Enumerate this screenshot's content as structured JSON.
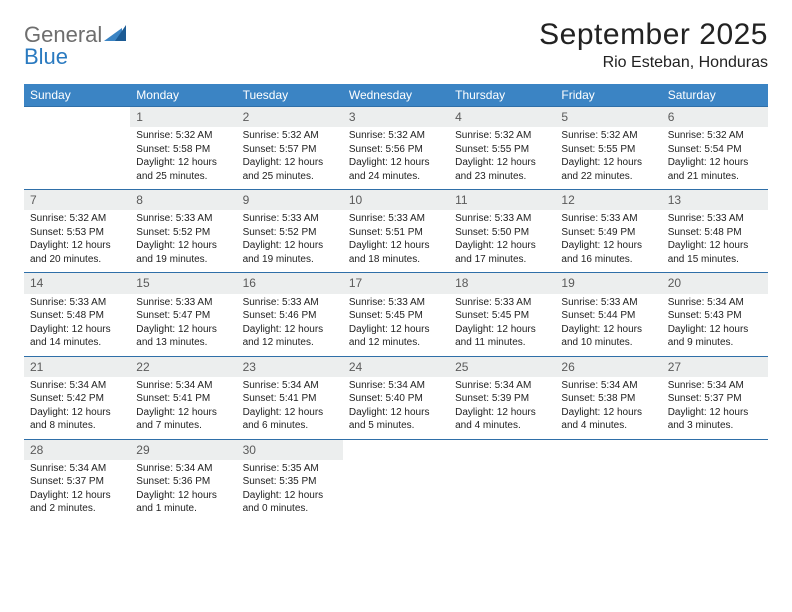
{
  "logo": {
    "general": "General",
    "blue": "Blue"
  },
  "title": "September 2025",
  "location": "Rio Esteban, Honduras",
  "colors": {
    "header_bg": "#3b84c4",
    "header_text": "#ffffff",
    "daynum_bg": "#eceeee",
    "daynum_text": "#5a5a5a",
    "week_divider": "#2f6fa8",
    "body_text": "#222222",
    "logo_gray": "#6e6e6e",
    "logo_blue": "#2a7ac0",
    "logo_tri_dark": "#1c5b94"
  },
  "weekdays": [
    "Sunday",
    "Monday",
    "Tuesday",
    "Wednesday",
    "Thursday",
    "Friday",
    "Saturday"
  ],
  "weeks": [
    [
      null,
      {
        "n": "1",
        "sr": "Sunrise: 5:32 AM",
        "ss": "Sunset: 5:58 PM",
        "dl": "Daylight: 12 hours and 25 minutes."
      },
      {
        "n": "2",
        "sr": "Sunrise: 5:32 AM",
        "ss": "Sunset: 5:57 PM",
        "dl": "Daylight: 12 hours and 25 minutes."
      },
      {
        "n": "3",
        "sr": "Sunrise: 5:32 AM",
        "ss": "Sunset: 5:56 PM",
        "dl": "Daylight: 12 hours and 24 minutes."
      },
      {
        "n": "4",
        "sr": "Sunrise: 5:32 AM",
        "ss": "Sunset: 5:55 PM",
        "dl": "Daylight: 12 hours and 23 minutes."
      },
      {
        "n": "5",
        "sr": "Sunrise: 5:32 AM",
        "ss": "Sunset: 5:55 PM",
        "dl": "Daylight: 12 hours and 22 minutes."
      },
      {
        "n": "6",
        "sr": "Sunrise: 5:32 AM",
        "ss": "Sunset: 5:54 PM",
        "dl": "Daylight: 12 hours and 21 minutes."
      }
    ],
    [
      {
        "n": "7",
        "sr": "Sunrise: 5:32 AM",
        "ss": "Sunset: 5:53 PM",
        "dl": "Daylight: 12 hours and 20 minutes."
      },
      {
        "n": "8",
        "sr": "Sunrise: 5:33 AM",
        "ss": "Sunset: 5:52 PM",
        "dl": "Daylight: 12 hours and 19 minutes."
      },
      {
        "n": "9",
        "sr": "Sunrise: 5:33 AM",
        "ss": "Sunset: 5:52 PM",
        "dl": "Daylight: 12 hours and 19 minutes."
      },
      {
        "n": "10",
        "sr": "Sunrise: 5:33 AM",
        "ss": "Sunset: 5:51 PM",
        "dl": "Daylight: 12 hours and 18 minutes."
      },
      {
        "n": "11",
        "sr": "Sunrise: 5:33 AM",
        "ss": "Sunset: 5:50 PM",
        "dl": "Daylight: 12 hours and 17 minutes."
      },
      {
        "n": "12",
        "sr": "Sunrise: 5:33 AM",
        "ss": "Sunset: 5:49 PM",
        "dl": "Daylight: 12 hours and 16 minutes."
      },
      {
        "n": "13",
        "sr": "Sunrise: 5:33 AM",
        "ss": "Sunset: 5:48 PM",
        "dl": "Daylight: 12 hours and 15 minutes."
      }
    ],
    [
      {
        "n": "14",
        "sr": "Sunrise: 5:33 AM",
        "ss": "Sunset: 5:48 PM",
        "dl": "Daylight: 12 hours and 14 minutes."
      },
      {
        "n": "15",
        "sr": "Sunrise: 5:33 AM",
        "ss": "Sunset: 5:47 PM",
        "dl": "Daylight: 12 hours and 13 minutes."
      },
      {
        "n": "16",
        "sr": "Sunrise: 5:33 AM",
        "ss": "Sunset: 5:46 PM",
        "dl": "Daylight: 12 hours and 12 minutes."
      },
      {
        "n": "17",
        "sr": "Sunrise: 5:33 AM",
        "ss": "Sunset: 5:45 PM",
        "dl": "Daylight: 12 hours and 12 minutes."
      },
      {
        "n": "18",
        "sr": "Sunrise: 5:33 AM",
        "ss": "Sunset: 5:45 PM",
        "dl": "Daylight: 12 hours and 11 minutes."
      },
      {
        "n": "19",
        "sr": "Sunrise: 5:33 AM",
        "ss": "Sunset: 5:44 PM",
        "dl": "Daylight: 12 hours and 10 minutes."
      },
      {
        "n": "20",
        "sr": "Sunrise: 5:34 AM",
        "ss": "Sunset: 5:43 PM",
        "dl": "Daylight: 12 hours and 9 minutes."
      }
    ],
    [
      {
        "n": "21",
        "sr": "Sunrise: 5:34 AM",
        "ss": "Sunset: 5:42 PM",
        "dl": "Daylight: 12 hours and 8 minutes."
      },
      {
        "n": "22",
        "sr": "Sunrise: 5:34 AM",
        "ss": "Sunset: 5:41 PM",
        "dl": "Daylight: 12 hours and 7 minutes."
      },
      {
        "n": "23",
        "sr": "Sunrise: 5:34 AM",
        "ss": "Sunset: 5:41 PM",
        "dl": "Daylight: 12 hours and 6 minutes."
      },
      {
        "n": "24",
        "sr": "Sunrise: 5:34 AM",
        "ss": "Sunset: 5:40 PM",
        "dl": "Daylight: 12 hours and 5 minutes."
      },
      {
        "n": "25",
        "sr": "Sunrise: 5:34 AM",
        "ss": "Sunset: 5:39 PM",
        "dl": "Daylight: 12 hours and 4 minutes."
      },
      {
        "n": "26",
        "sr": "Sunrise: 5:34 AM",
        "ss": "Sunset: 5:38 PM",
        "dl": "Daylight: 12 hours and 4 minutes."
      },
      {
        "n": "27",
        "sr": "Sunrise: 5:34 AM",
        "ss": "Sunset: 5:37 PM",
        "dl": "Daylight: 12 hours and 3 minutes."
      }
    ],
    [
      {
        "n": "28",
        "sr": "Sunrise: 5:34 AM",
        "ss": "Sunset: 5:37 PM",
        "dl": "Daylight: 12 hours and 2 minutes."
      },
      {
        "n": "29",
        "sr": "Sunrise: 5:34 AM",
        "ss": "Sunset: 5:36 PM",
        "dl": "Daylight: 12 hours and 1 minute."
      },
      {
        "n": "30",
        "sr": "Sunrise: 5:35 AM",
        "ss": "Sunset: 5:35 PM",
        "dl": "Daylight: 12 hours and 0 minutes."
      },
      null,
      null,
      null,
      null
    ]
  ]
}
